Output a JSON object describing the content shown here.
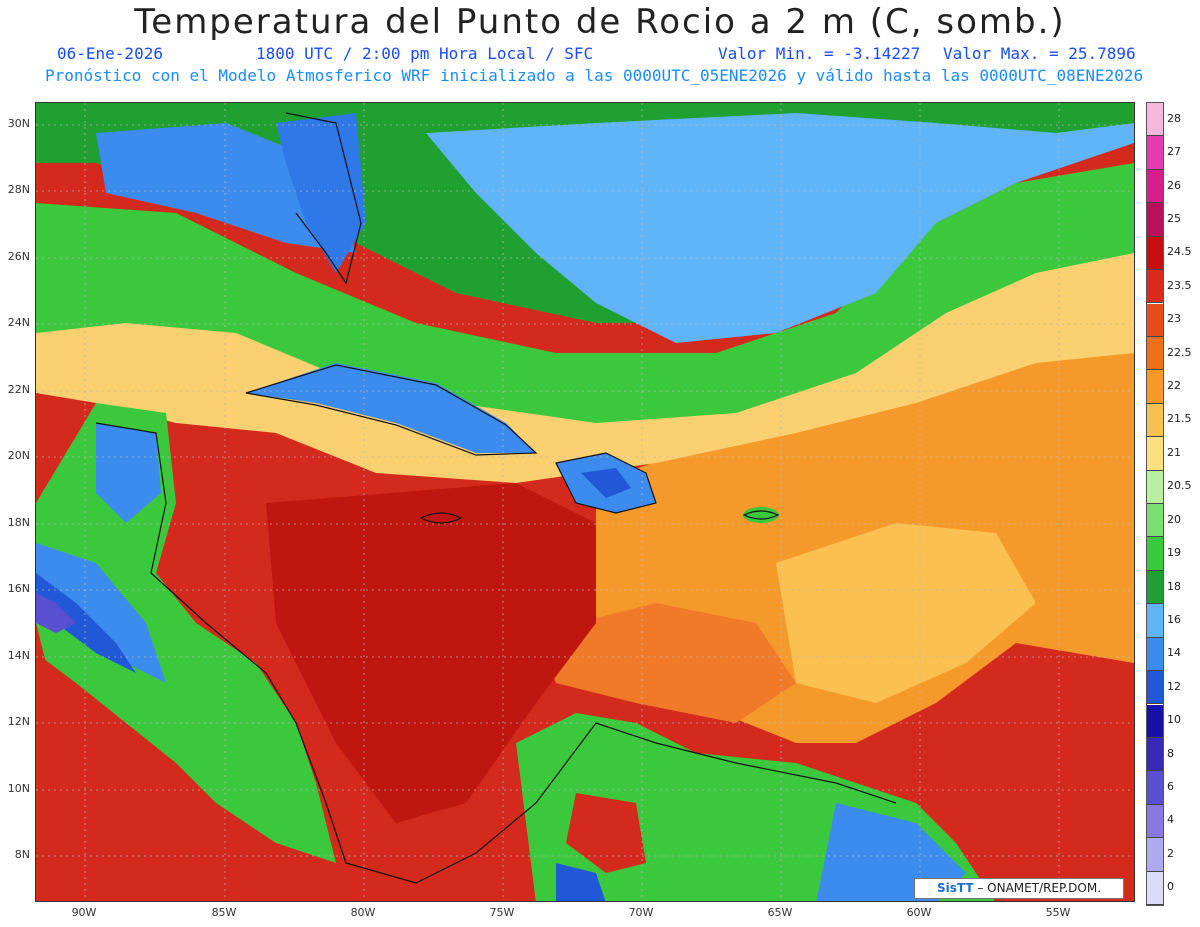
{
  "header": {
    "title": "Temperatura del Punto de Rocio a 2 m (C, somb.)",
    "date": "06-Ene-2026",
    "time": "1800 UTC / 2:00 pm Hora Local / SFC",
    "min": "Valor Min. = -3.14227",
    "max": "Valor Max. = 25.7896",
    "model_line": "Pronóstico con el Modelo Atmosferico WRF inicializado a las 0000UTC_05ENE2026 y válido hasta las  0000UTC_08ENE2026"
  },
  "axes": {
    "lat": [
      "30N",
      "28N",
      "26N",
      "24N",
      "22N",
      "20N",
      "18N",
      "16N",
      "14N",
      "12N",
      "10N",
      "8N"
    ],
    "lon": [
      "90W",
      "85W",
      "80W",
      "75W",
      "70W",
      "65W",
      "60W",
      "55W"
    ]
  },
  "colorbar": {
    "labels": [
      "28",
      "27",
      "26",
      "25",
      "24.5",
      "23.5",
      "23",
      "22.5",
      "22",
      "21.5",
      "21",
      "20.5",
      "20",
      "19",
      "18",
      "16",
      "14",
      "12",
      "10",
      "8",
      "6",
      "4",
      "2",
      "0"
    ],
    "colors": [
      "#f5b8dc",
      "#e83ab0",
      "#d81e8a",
      "#b8105a",
      "#c80f0f",
      "#dc2a1a",
      "#e84a1a",
      "#f07018",
      "#f89a28",
      "#fac050",
      "#fae080",
      "#b8f0a0",
      "#78e070",
      "#3cc83c",
      "#20a030",
      "#60b4f8",
      "#3c8cf0",
      "#2058d8",
      "#1810a8",
      "#3828b8",
      "#5850d0",
      "#8878e0",
      "#b0a8f0",
      "#dcdcf8"
    ]
  },
  "credit": {
    "brand": "SisTT",
    "text": "– ONAMET/REP.DOM."
  }
}
